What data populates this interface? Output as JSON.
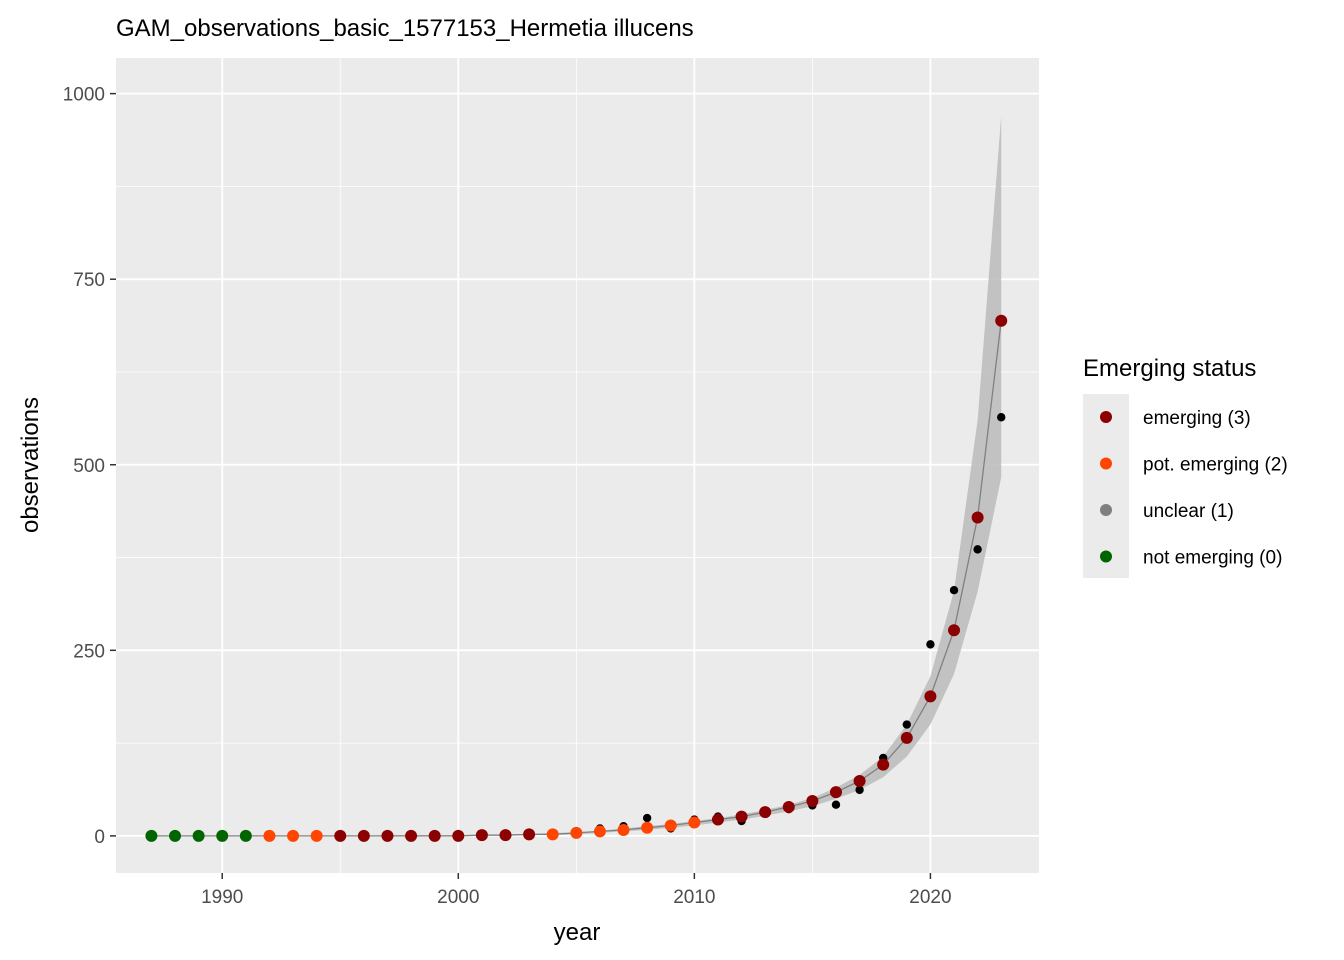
{
  "chart_data": {
    "type": "scatter",
    "title": "GAM_observations_basic_1577153_Hermetia illucens",
    "xlabel": "year",
    "ylabel": "observations",
    "xlim": [
      1985.5,
      2024.6
    ],
    "ylim": [
      -50,
      1048
    ],
    "xticks": [
      1990,
      2000,
      2010,
      2020
    ],
    "yticks": [
      0,
      250,
      500,
      750,
      1000
    ],
    "grid": true,
    "legend": {
      "title": "Emerging status",
      "placement": "right",
      "entries": [
        {
          "label": "emerging (3)",
          "color": "#8b0000"
        },
        {
          "label": "pot. emerging (2)",
          "color": "#ff4500"
        },
        {
          "label": "unclear (1)",
          "color": "#7f7f7f"
        },
        {
          "label": "not emerging (0)",
          "color": "#006400"
        }
      ]
    },
    "observed": [
      {
        "x": 1987,
        "y": 0
      },
      {
        "x": 1988,
        "y": 0
      },
      {
        "x": 1989,
        "y": 0
      },
      {
        "x": 1990,
        "y": 0
      },
      {
        "x": 1991,
        "y": 0
      },
      {
        "x": 1992,
        "y": 0
      },
      {
        "x": 1993,
        "y": 0
      },
      {
        "x": 1994,
        "y": 0
      },
      {
        "x": 1995,
        "y": 0
      },
      {
        "x": 1996,
        "y": 0
      },
      {
        "x": 1997,
        "y": 0
      },
      {
        "x": 1998,
        "y": 0
      },
      {
        "x": 1999,
        "y": 0
      },
      {
        "x": 2000,
        "y": 0
      },
      {
        "x": 2001,
        "y": 1
      },
      {
        "x": 2002,
        "y": 1
      },
      {
        "x": 2003,
        "y": 2
      },
      {
        "x": 2004,
        "y": 2
      },
      {
        "x": 2005,
        "y": 2
      },
      {
        "x": 2006,
        "y": 10
      },
      {
        "x": 2007,
        "y": 13
      },
      {
        "x": 2008,
        "y": 24
      },
      {
        "x": 2009,
        "y": 10
      },
      {
        "x": 2010,
        "y": 22
      },
      {
        "x": 2011,
        "y": 26
      },
      {
        "x": 2012,
        "y": 20
      },
      {
        "x": 2013,
        "y": 33
      },
      {
        "x": 2014,
        "y": 36
      },
      {
        "x": 2015,
        "y": 41
      },
      {
        "x": 2016,
        "y": 42
      },
      {
        "x": 2017,
        "y": 62
      },
      {
        "x": 2018,
        "y": 105
      },
      {
        "x": 2019,
        "y": 150
      },
      {
        "x": 2020,
        "y": 258
      },
      {
        "x": 2021,
        "y": 331
      },
      {
        "x": 2022,
        "y": 386
      },
      {
        "x": 2023,
        "y": 564
      }
    ],
    "fitted": [
      {
        "x": 1987,
        "y": 0,
        "status": 0
      },
      {
        "x": 1988,
        "y": 0,
        "status": 0
      },
      {
        "x": 1989,
        "y": 0,
        "status": 0
      },
      {
        "x": 1990,
        "y": 0,
        "status": 0
      },
      {
        "x": 1991,
        "y": 0,
        "status": 0
      },
      {
        "x": 1992,
        "y": 0,
        "status": 2
      },
      {
        "x": 1993,
        "y": 0,
        "status": 2
      },
      {
        "x": 1994,
        "y": 0,
        "status": 2
      },
      {
        "x": 1995,
        "y": 0,
        "status": 3
      },
      {
        "x": 1996,
        "y": 0,
        "status": 3
      },
      {
        "x": 1997,
        "y": 0,
        "status": 3
      },
      {
        "x": 1998,
        "y": 0,
        "status": 3
      },
      {
        "x": 1999,
        "y": 0,
        "status": 3
      },
      {
        "x": 2000,
        "y": 0,
        "status": 3
      },
      {
        "x": 2001,
        "y": 1,
        "status": 3
      },
      {
        "x": 2002,
        "y": 1,
        "status": 3
      },
      {
        "x": 2003,
        "y": 2,
        "status": 3
      },
      {
        "x": 2004,
        "y": 2,
        "status": 2
      },
      {
        "x": 2005,
        "y": 4,
        "status": 2
      },
      {
        "x": 2006,
        "y": 6,
        "status": 2
      },
      {
        "x": 2007,
        "y": 8,
        "status": 2
      },
      {
        "x": 2008,
        "y": 11,
        "status": 2
      },
      {
        "x": 2009,
        "y": 14,
        "status": 2
      },
      {
        "x": 2010,
        "y": 18,
        "status": 2
      },
      {
        "x": 2011,
        "y": 22,
        "status": 3
      },
      {
        "x": 2012,
        "y": 26,
        "status": 3
      },
      {
        "x": 2013,
        "y": 32,
        "status": 3
      },
      {
        "x": 2014,
        "y": 39,
        "status": 3
      },
      {
        "x": 2015,
        "y": 47,
        "status": 3
      },
      {
        "x": 2016,
        "y": 59,
        "status": 3
      },
      {
        "x": 2017,
        "y": 74,
        "status": 3
      },
      {
        "x": 2018,
        "y": 96,
        "status": 3
      },
      {
        "x": 2019,
        "y": 132,
        "status": 3
      },
      {
        "x": 2020,
        "y": 188,
        "status": 3
      },
      {
        "x": 2021,
        "y": 277,
        "status": 3
      },
      {
        "x": 2022,
        "y": 429,
        "status": 3
      },
      {
        "x": 2023,
        "y": 694,
        "status": 3
      }
    ],
    "ci_lower": [
      0,
      0,
      0,
      0,
      0,
      0,
      0,
      0,
      0,
      0,
      0,
      0,
      0,
      0,
      0,
      0,
      1,
      1,
      2,
      4,
      6,
      8,
      11,
      14,
      18,
      22,
      27,
      33,
      40,
      50,
      62,
      79,
      107,
      150,
      218,
      329,
      483
    ],
    "ci_upper": [
      0,
      0,
      0,
      0,
      0,
      0,
      0,
      0,
      0,
      0,
      1,
      1,
      1,
      1,
      2,
      2,
      3,
      4,
      5,
      7,
      10,
      13,
      16,
      20,
      24,
      29,
      35,
      42,
      51,
      65,
      82,
      107,
      150,
      215,
      330,
      560,
      970
    ]
  }
}
